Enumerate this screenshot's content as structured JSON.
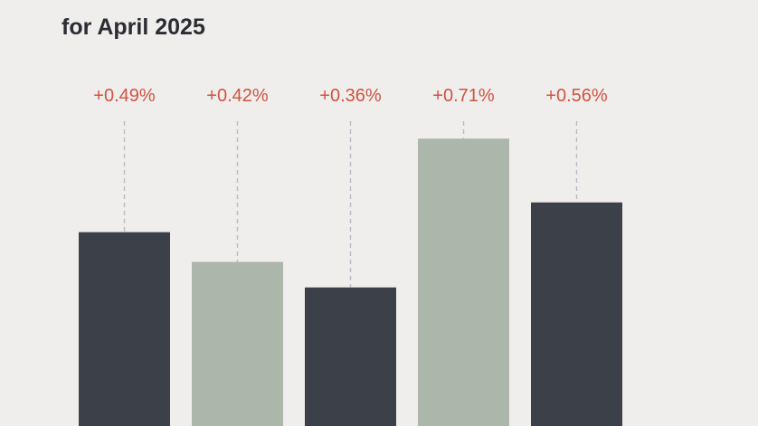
{
  "chart_data": {
    "type": "bar",
    "title": "for April 2025",
    "values": [
      0.49,
      0.42,
      0.36,
      0.71,
      0.56
    ],
    "value_labels": [
      "+0.49%",
      "+0.42%",
      "+0.36%",
      "+0.71%",
      "+0.56%"
    ],
    "colors": [
      "#3c4048",
      "#adb6ab",
      "#3c4048",
      "#adb6ab",
      "#3c4048"
    ],
    "label_color": "#d0533f"
  }
}
